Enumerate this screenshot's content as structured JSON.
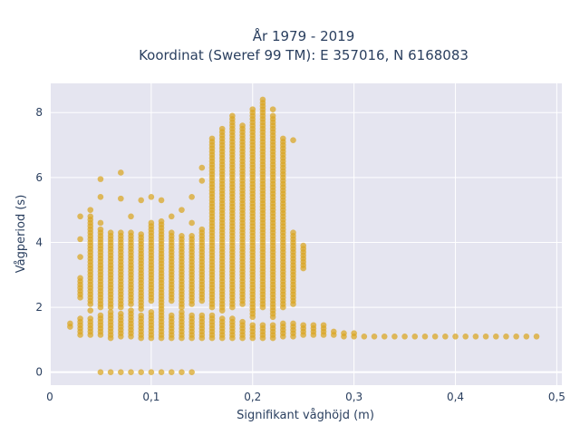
{
  "chart_data": {
    "type": "scatter",
    "title_lines": [
      "År 1979 - 2019",
      "Koordinat (Sweref 99 TM): E 357016, N 6168083"
    ],
    "xlabel": "Signifikant våghöjd (m)",
    "ylabel": "Vågperiod (s)",
    "xlim": [
      0,
      0.505
    ],
    "ylim": [
      -0.4,
      8.9
    ],
    "x_ticks": [
      0,
      0.1,
      0.2,
      0.3,
      0.4,
      0.5
    ],
    "x_tick_labels": [
      "0",
      "0,1",
      "0,2",
      "0,3",
      "0,4",
      "0,5"
    ],
    "y_ticks": [
      0,
      2,
      4,
      6,
      8
    ],
    "y_tick_labels": [
      "0",
      "2",
      "4",
      "6",
      "8"
    ],
    "grid": true,
    "colors": {
      "marker": "#DAA520",
      "plot_bg": "#E5E5F0",
      "grid": "#FFFFFF",
      "text": "#2A3F5F"
    },
    "x_step": 0.01,
    "columns": [
      {
        "x": 0.02,
        "runs": [
          [
            1.4,
            1.55
          ]
        ]
      },
      {
        "x": 0.03,
        "runs": [
          [
            1.15,
            1.65
          ],
          [
            2.3,
            2.9
          ]
        ],
        "singles": [
          3.55,
          4.1,
          4.8
        ]
      },
      {
        "x": 0.04,
        "runs": [
          [
            1.15,
            1.7
          ],
          [
            2.1,
            4.85
          ]
        ],
        "singles": [
          1.9,
          5.0
        ]
      },
      {
        "x": 0.05,
        "runs": [
          [
            1.15,
            1.75
          ],
          [
            2.0,
            4.4
          ]
        ],
        "singles": [
          0.0,
          4.6,
          5.4,
          5.95
        ]
      },
      {
        "x": 0.06,
        "runs": [
          [
            1.05,
            1.85
          ],
          [
            2.0,
            4.35
          ]
        ],
        "singles": [
          0.0
        ]
      },
      {
        "x": 0.07,
        "runs": [
          [
            1.1,
            1.85
          ],
          [
            2.0,
            4.35
          ]
        ],
        "singles": [
          0.0,
          5.35,
          6.15
        ]
      },
      {
        "x": 0.08,
        "runs": [
          [
            1.1,
            1.9
          ],
          [
            2.1,
            4.3
          ]
        ],
        "singles": [
          0.0,
          4.8
        ]
      },
      {
        "x": 0.09,
        "runs": [
          [
            1.05,
            1.8
          ],
          [
            1.95,
            4.3
          ]
        ],
        "singles": [
          0.0,
          5.3
        ]
      },
      {
        "x": 0.1,
        "runs": [
          [
            1.05,
            1.9
          ],
          [
            2.2,
            4.6
          ]
        ],
        "singles": [
          0.0,
          5.4
        ]
      },
      {
        "x": 0.11,
        "runs": [
          [
            1.05,
            1.9
          ],
          [
            1.95,
            4.7
          ]
        ],
        "singles": [
          0.0,
          5.3
        ]
      },
      {
        "x": 0.12,
        "runs": [
          [
            1.05,
            1.75
          ],
          [
            2.2,
            4.3
          ]
        ],
        "singles": [
          0.0,
          4.8
        ]
      },
      {
        "x": 0.13,
        "runs": [
          [
            1.05,
            1.85
          ],
          [
            2.0,
            4.2
          ]
        ],
        "singles": [
          0.0,
          5.0
        ]
      },
      {
        "x": 0.14,
        "runs": [
          [
            1.05,
            1.8
          ],
          [
            2.1,
            4.2
          ]
        ],
        "singles": [
          0.0,
          4.6,
          5.4
        ]
      },
      {
        "x": 0.15,
        "runs": [
          [
            1.05,
            1.8
          ],
          [
            2.2,
            4.4
          ]
        ],
        "singles": [
          5.9,
          6.3
        ]
      },
      {
        "x": 0.16,
        "runs": [
          [
            1.05,
            1.75
          ],
          [
            2.0,
            7.2
          ]
        ]
      },
      {
        "x": 0.17,
        "runs": [
          [
            1.05,
            1.7
          ],
          [
            1.9,
            7.55
          ]
        ]
      },
      {
        "x": 0.18,
        "runs": [
          [
            1.05,
            1.7
          ],
          [
            2.0,
            7.9
          ]
        ]
      },
      {
        "x": 0.19,
        "runs": [
          [
            1.05,
            1.6
          ],
          [
            2.1,
            7.6
          ]
        ]
      },
      {
        "x": 0.2,
        "runs": [
          [
            1.05,
            1.5
          ],
          [
            1.7,
            8.15
          ]
        ]
      },
      {
        "x": 0.21,
        "runs": [
          [
            1.05,
            1.5
          ],
          [
            2.0,
            8.45
          ]
        ]
      },
      {
        "x": 0.22,
        "runs": [
          [
            1.05,
            1.5
          ],
          [
            1.7,
            7.95
          ]
        ],
        "singles": [
          8.1
        ]
      },
      {
        "x": 0.23,
        "runs": [
          [
            1.1,
            1.5
          ],
          [
            2.0,
            7.25
          ]
        ]
      },
      {
        "x": 0.24,
        "runs": [
          [
            1.1,
            1.5
          ],
          [
            2.1,
            4.3
          ]
        ],
        "singles": [
          7.15
        ]
      },
      {
        "x": 0.25,
        "runs": [
          [
            1.15,
            1.5
          ],
          [
            3.2,
            3.9
          ]
        ]
      },
      {
        "x": 0.26,
        "runs": [
          [
            1.15,
            1.5
          ]
        ]
      },
      {
        "x": 0.27,
        "runs": [
          [
            1.15,
            1.45
          ]
        ]
      },
      {
        "x": 0.28,
        "runs": [
          [
            1.15,
            1.25
          ]
        ]
      },
      {
        "x": 0.29,
        "runs": [
          [
            1.1,
            1.2
          ]
        ]
      },
      {
        "x": 0.3,
        "runs": [
          [
            1.1,
            1.2
          ]
        ]
      },
      {
        "x": 0.31,
        "runs": [
          [
            1.1,
            1.15
          ]
        ]
      },
      {
        "x": 0.32,
        "runs": [
          [
            1.1,
            1.15
          ]
        ]
      },
      {
        "x": 0.33,
        "runs": [
          [
            1.1,
            1.15
          ]
        ]
      },
      {
        "x": 0.34,
        "runs": [
          [
            1.1,
            1.15
          ]
        ]
      },
      {
        "x": 0.35,
        "runs": [
          [
            1.1,
            1.15
          ]
        ]
      },
      {
        "x": 0.36,
        "runs": [
          [
            1.1,
            1.15
          ]
        ]
      },
      {
        "x": 0.37,
        "runs": [
          [
            1.1,
            1.15
          ]
        ]
      },
      {
        "x": 0.38,
        "runs": [
          [
            1.1,
            1.15
          ]
        ]
      },
      {
        "x": 0.39,
        "runs": [
          [
            1.1,
            1.15
          ]
        ]
      },
      {
        "x": 0.4,
        "runs": [
          [
            1.1,
            1.15
          ]
        ]
      },
      {
        "x": 0.41,
        "runs": [
          [
            1.1,
            1.15
          ]
        ]
      },
      {
        "x": 0.42,
        "runs": [
          [
            1.1,
            1.15
          ]
        ]
      },
      {
        "x": 0.43,
        "runs": [
          [
            1.1,
            1.15
          ]
        ]
      },
      {
        "x": 0.44,
        "runs": [
          [
            1.1,
            1.15
          ]
        ]
      },
      {
        "x": 0.45,
        "runs": [
          [
            1.1,
            1.15
          ]
        ]
      },
      {
        "x": 0.46,
        "runs": [
          [
            1.1,
            1.15
          ]
        ]
      },
      {
        "x": 0.47,
        "runs": [
          [
            1.1,
            1.15
          ]
        ]
      },
      {
        "x": 0.48,
        "runs": [
          [
            1.1,
            1.15
          ]
        ]
      }
    ]
  }
}
